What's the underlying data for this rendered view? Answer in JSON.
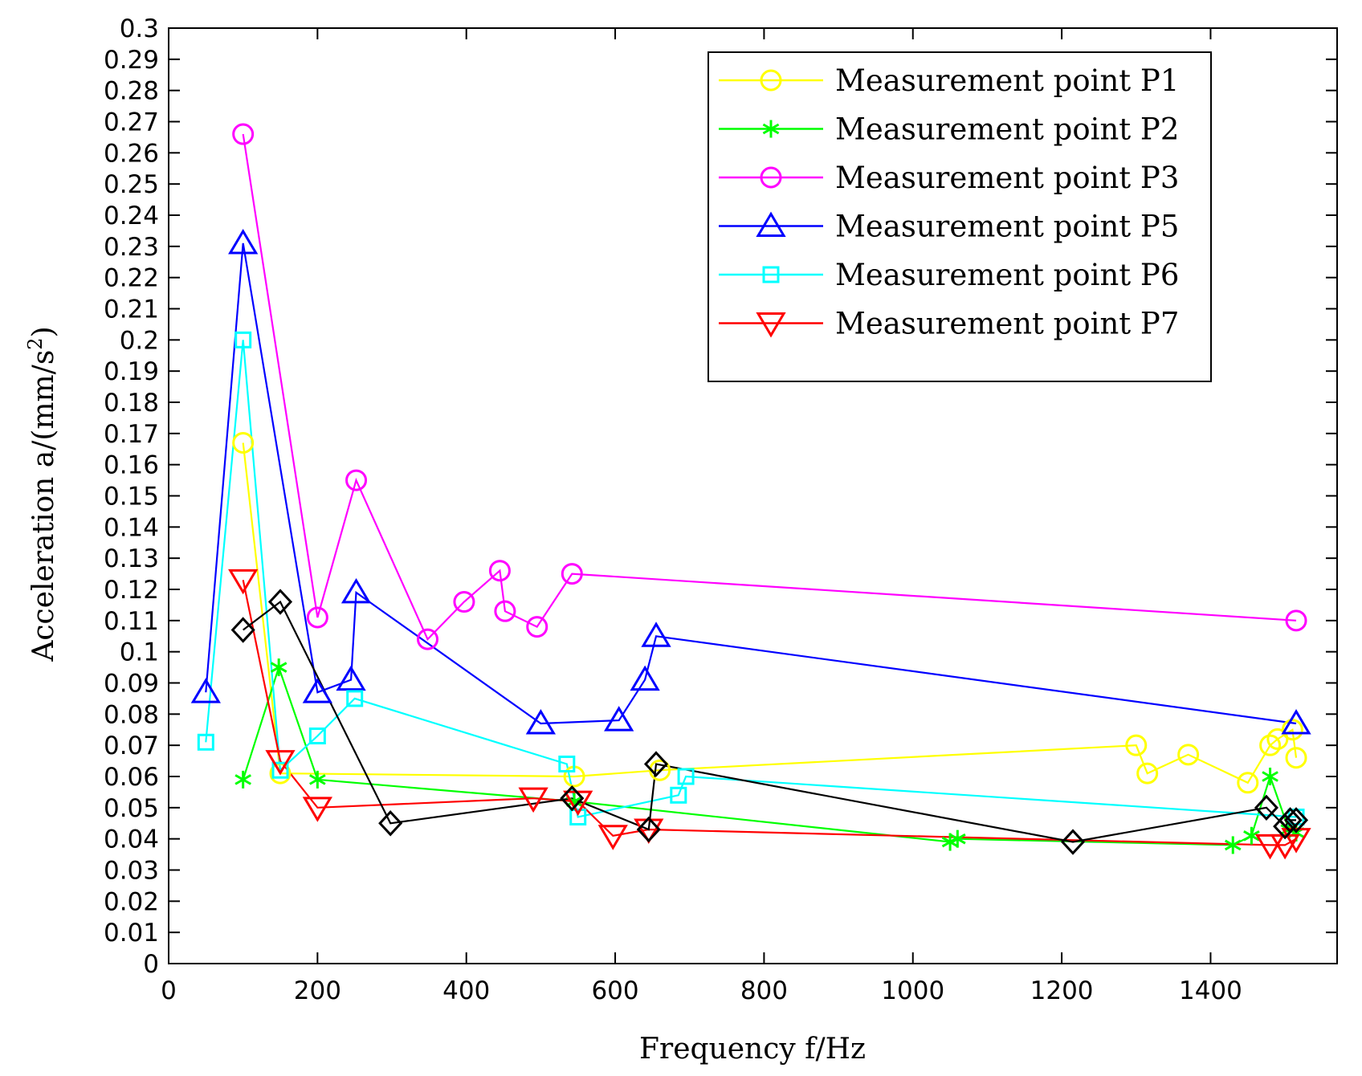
{
  "chart_data": {
    "type": "line",
    "xlabel": "Frequency f/Hz",
    "ylabel_prefix": "Acceleration a/(mm/s",
    "ylabel_sup": "2",
    "ylabel_suffix": ")",
    "xlim": [
      0,
      1570
    ],
    "ylim": [
      0,
      0.3
    ],
    "xticks": [
      0,
      200,
      400,
      600,
      800,
      1000,
      1200,
      1400
    ],
    "yticks": [
      0,
      0.01,
      0.02,
      0.03,
      0.04,
      0.05,
      0.06,
      0.07,
      0.08,
      0.09,
      0.1,
      0.11,
      0.12,
      0.13,
      0.14,
      0.15,
      0.16,
      0.17,
      0.18,
      0.19,
      0.2,
      0.21,
      0.22,
      0.23,
      0.24,
      0.25,
      0.26,
      0.27,
      0.28,
      0.29,
      0.3
    ],
    "legend_position": "top-right",
    "series": [
      {
        "name": "Measurement point P1",
        "color": "#ffff00",
        "marker": "circle",
        "in_legend": true,
        "x": [
          100,
          150,
          545,
          660,
          1300,
          1315,
          1370,
          1450,
          1480,
          1490,
          1510,
          1515
        ],
        "y": [
          0.167,
          0.061,
          0.06,
          0.062,
          0.07,
          0.061,
          0.067,
          0.058,
          0.07,
          0.072,
          0.075,
          0.066
        ]
      },
      {
        "name": "Measurement point P2",
        "color": "#00ff00",
        "marker": "asterisk",
        "in_legend": true,
        "x": [
          100,
          148,
          200,
          545,
          1050,
          1060,
          1430,
          1455,
          1480,
          1505,
          1515
        ],
        "y": [
          0.059,
          0.095,
          0.059,
          0.052,
          0.039,
          0.04,
          0.038,
          0.041,
          0.06,
          0.043,
          0.042
        ]
      },
      {
        "name": "Measurement point P3",
        "color": "#ff00ff",
        "marker": "circle",
        "in_legend": true,
        "x": [
          100,
          200,
          252,
          348,
          397,
          445,
          452,
          495,
          542,
          1515
        ],
        "y": [
          0.266,
          0.111,
          0.155,
          0.104,
          0.116,
          0.126,
          0.113,
          0.108,
          0.125,
          0.11
        ]
      },
      {
        "name": "Measurement point P5",
        "color": "#0000ff",
        "marker": "triangle-up",
        "in_legend": true,
        "x": [
          50,
          100,
          200,
          245,
          252,
          500,
          605,
          640,
          655,
          1515
        ],
        "y": [
          0.087,
          0.231,
          0.087,
          0.091,
          0.119,
          0.077,
          0.078,
          0.091,
          0.105,
          0.077
        ]
      },
      {
        "name": "Measurement point P6",
        "color": "#00ffff",
        "marker": "square",
        "in_legend": true,
        "x": [
          50,
          100,
          150,
          200,
          250,
          535,
          550,
          685,
          695,
          1515
        ],
        "y": [
          0.071,
          0.2,
          0.062,
          0.073,
          0.085,
          0.064,
          0.047,
          0.054,
          0.06,
          0.047
        ]
      },
      {
        "name": "Measurement point P7",
        "color": "#ff0000",
        "marker": "triangle-down",
        "in_legend": true,
        "x": [
          100,
          150,
          200,
          490,
          550,
          597,
          645,
          1480,
          1500,
          1515
        ],
        "y": [
          0.123,
          0.065,
          0.05,
          0.053,
          0.052,
          0.041,
          0.043,
          0.038,
          0.038,
          0.04
        ]
      },
      {
        "name": "",
        "color": "#000000",
        "marker": "diamond",
        "in_legend": false,
        "x": [
          100,
          150,
          298,
          542,
          645,
          655,
          1215,
          1475,
          1500,
          1507,
          1515
        ],
        "y": [
          0.107,
          0.116,
          0.045,
          0.053,
          0.043,
          0.064,
          0.039,
          0.05,
          0.044,
          0.046,
          0.046
        ]
      }
    ]
  }
}
